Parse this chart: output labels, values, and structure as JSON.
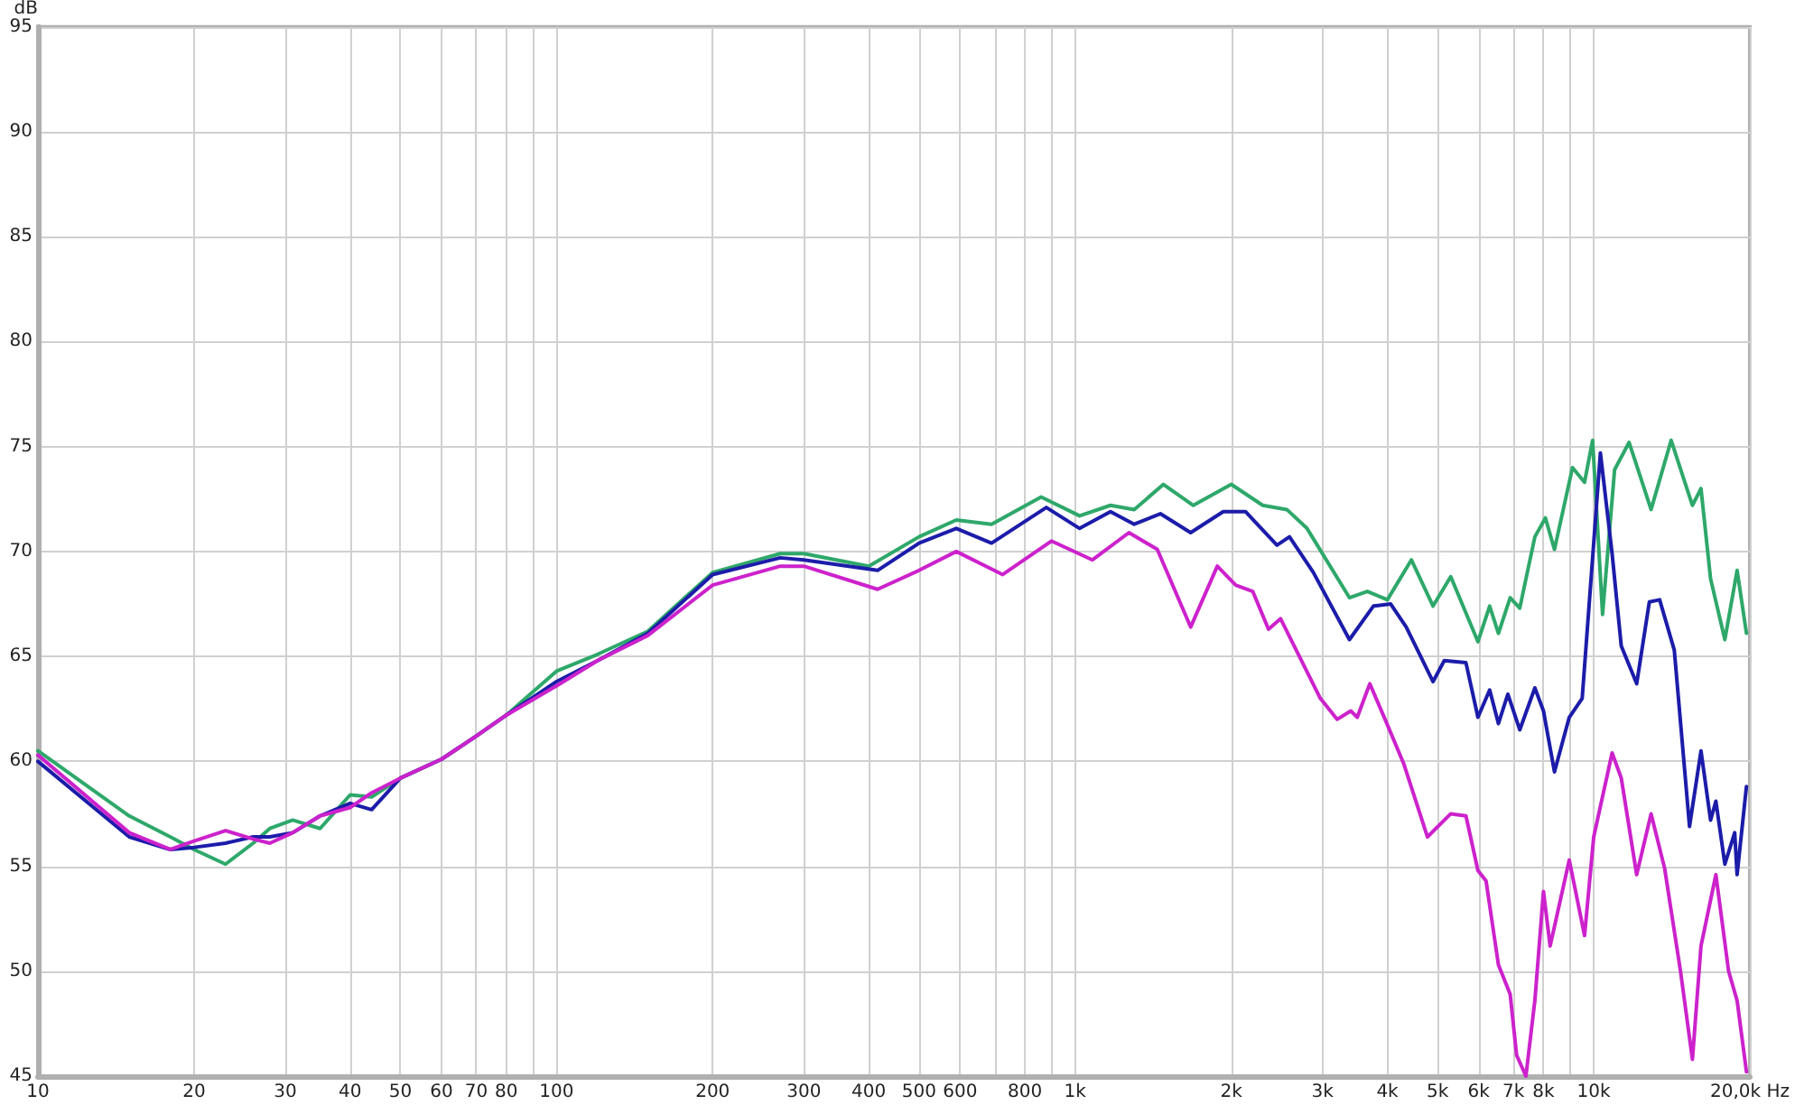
{
  "chart_data": {
    "type": "line",
    "ylabel": "dB",
    "log": "x",
    "grid": true,
    "xlim": [
      10,
      20000
    ],
    "ylim": [
      45,
      95
    ],
    "xticks": [
      10,
      20,
      30,
      40,
      50,
      60,
      70,
      80,
      {
        "value": 90,
        "label": null
      },
      100,
      200,
      300,
      400,
      500,
      600,
      {
        "value": 700,
        "label": null
      },
      800,
      {
        "value": 900,
        "label": null
      },
      {
        "value": 1000,
        "label": "1k"
      },
      {
        "value": 2000,
        "label": "2k"
      },
      {
        "value": 3000,
        "label": "3k"
      },
      {
        "value": 4000,
        "label": "4k"
      },
      {
        "value": 5000,
        "label": "5k"
      },
      {
        "value": 6000,
        "label": "6k"
      },
      {
        "value": 7000,
        "label": "7k"
      },
      {
        "value": 8000,
        "label": "8k"
      },
      {
        "value": 9000,
        "label": null
      },
      {
        "value": 10000,
        "label": "10k"
      },
      {
        "value": 20000,
        "label": "20,0k Hz"
      }
    ],
    "yticks": [
      45,
      50,
      55,
      60,
      65,
      70,
      75,
      80,
      85,
      90,
      95
    ],
    "series": [
      {
        "color": "#2ea86a",
        "x": [
          10,
          15,
          18,
          20,
          23,
          26,
          28,
          31,
          35,
          40,
          44,
          50,
          60,
          70,
          80,
          100,
          120,
          150,
          200,
          270,
          300,
          400,
          500,
          590,
          690,
          860,
          1020,
          1170,
          1300,
          1480,
          1690,
          2000,
          2300,
          2560,
          2800,
          3380,
          3660,
          4000,
          4450,
          4900,
          5300,
          5980,
          6300,
          6550,
          6900,
          7200,
          7700,
          8070,
          8400,
          9100,
          9600,
          9950,
          10400,
          10970,
          11700,
          12900,
          14100,
          15500,
          16100,
          16800,
          17900,
          18900,
          19700
        ],
        "values": [
          60.5,
          57.4,
          56.4,
          55.8,
          55.1,
          56.1,
          56.8,
          57.2,
          56.8,
          58.4,
          58.3,
          59.2,
          60.1,
          61.2,
          62.2,
          64.3,
          65.1,
          66.2,
          69.0,
          69.9,
          69.9,
          69.3,
          70.7,
          71.5,
          71.3,
          72.6,
          71.7,
          72.2,
          72.0,
          73.2,
          72.2,
          73.2,
          72.2,
          72.0,
          71.1,
          67.8,
          68.1,
          67.7,
          69.6,
          67.4,
          68.8,
          65.7,
          67.4,
          66.1,
          67.8,
          67.3,
          70.7,
          71.6,
          70.1,
          74.0,
          73.3,
          75.3,
          67.0,
          73.9,
          75.2,
          72.0,
          75.3,
          72.2,
          73.0,
          68.7,
          65.8,
          69.1,
          66.1
        ]
      },
      {
        "color": "#1c1caa",
        "x": [
          10,
          15,
          18,
          20,
          23,
          26,
          28,
          31,
          35,
          40,
          44,
          50,
          60,
          70,
          80,
          100,
          120,
          150,
          200,
          270,
          300,
          416,
          500,
          590,
          690,
          880,
          1020,
          1170,
          1300,
          1460,
          1670,
          1930,
          2130,
          2450,
          2590,
          2880,
          3380,
          3760,
          4060,
          4350,
          4900,
          5150,
          5670,
          5980,
          6300,
          6550,
          6830,
          7200,
          7700,
          8000,
          8400,
          8970,
          9500,
          10300,
          10850,
          11300,
          12100,
          12800,
          13400,
          14300,
          15300,
          16100,
          16800,
          17200,
          17900,
          18700,
          18900,
          19700
        ],
        "values": [
          60.0,
          56.4,
          55.8,
          55.9,
          56.1,
          56.4,
          56.4,
          56.6,
          57.4,
          58.0,
          57.7,
          59.2,
          60.1,
          61.2,
          62.2,
          63.8,
          64.8,
          66.1,
          68.9,
          69.7,
          69.6,
          69.1,
          70.4,
          71.1,
          70.4,
          72.1,
          71.1,
          71.9,
          71.3,
          71.8,
          70.9,
          71.9,
          71.9,
          70.3,
          70.7,
          69.0,
          65.8,
          67.4,
          67.5,
          66.4,
          63.8,
          64.8,
          64.7,
          62.1,
          63.4,
          61.8,
          63.2,
          61.5,
          63.5,
          62.4,
          59.5,
          62.1,
          63.0,
          74.7,
          69.9,
          65.5,
          63.7,
          67.6,
          67.7,
          65.3,
          56.9,
          60.5,
          57.2,
          58.1,
          55.1,
          56.6,
          54.6,
          58.8
        ]
      },
      {
        "color": "#cc22cc",
        "x": [
          10,
          15,
          18,
          20,
          23,
          26,
          28,
          31,
          35,
          40,
          44,
          50,
          60,
          70,
          80,
          100,
          120,
          150,
          200,
          270,
          300,
          416,
          500,
          590,
          725,
          900,
          1080,
          1270,
          1440,
          1670,
          1880,
          2040,
          2200,
          2360,
          2490,
          2970,
          3200,
          3400,
          3500,
          3700,
          3960,
          4300,
          4780,
          5300,
          5670,
          5980,
          6200,
          6550,
          6900,
          7100,
          7400,
          7700,
          8000,
          8240,
          8970,
          9600,
          10000,
          10850,
          11300,
          12100,
          12900,
          13700,
          14700,
          15500,
          16100,
          17200,
          18200,
          18900,
          19700
        ],
        "values": [
          60.3,
          56.6,
          55.8,
          56.2,
          56.7,
          56.3,
          56.1,
          56.6,
          57.4,
          57.8,
          58.5,
          59.2,
          60.1,
          61.2,
          62.2,
          63.6,
          64.8,
          66.0,
          68.4,
          69.3,
          69.3,
          68.2,
          69.1,
          70.0,
          68.9,
          70.5,
          69.6,
          70.9,
          70.1,
          66.4,
          69.3,
          68.4,
          68.1,
          66.3,
          66.8,
          63.0,
          62.0,
          62.4,
          62.1,
          63.7,
          62.0,
          59.9,
          56.4,
          57.5,
          57.4,
          54.8,
          54.3,
          50.3,
          48.9,
          46.0,
          45.0,
          48.6,
          53.8,
          51.2,
          55.3,
          51.7,
          56.4,
          60.4,
          59.2,
          54.6,
          57.5,
          54.9,
          50.0,
          45.8,
          51.2,
          54.6,
          50.0,
          48.6,
          45.2
        ]
      }
    ]
  }
}
